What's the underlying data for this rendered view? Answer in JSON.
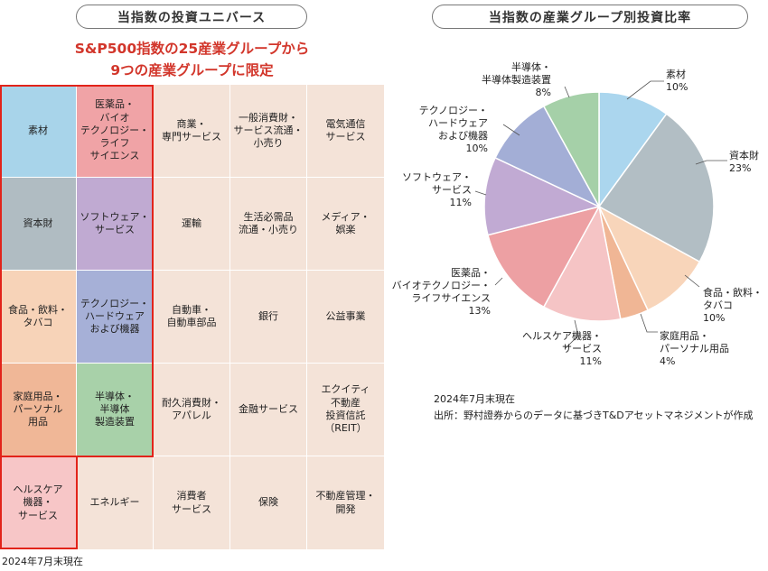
{
  "left": {
    "heading": "当指数の投資ユニバース",
    "subtitle_line1": "S&P500指数の25産業グループから",
    "subtitle_line2": "9つの産業グループに限定",
    "rows": [
      [
        "素材",
        "医薬品・\nバイオ\nテクノロジー・\nライフ\nサイエンス",
        "商業・\n専門サービス",
        "一般消費財・\nサービス流通・\n小売り",
        "電気通信\nサービス"
      ],
      [
        "資本財",
        "ソフトウェア・\nサービス",
        "運輸",
        "生活必需品\n流通・小売り",
        "メディア・\n娯楽"
      ],
      [
        "食品・飲料・\nタバコ",
        "テクノロジー・\nハードウェア\nおよび機器",
        "自動車・\n自動車部品",
        "銀行",
        "公益事業"
      ],
      [
        "家庭用品・\nパーソナル\n用品",
        "半導体・\n半導体\n製造装置",
        "耐久消費財・\nアパレル",
        "金融サービス",
        "エクイティ\n不動産\n投資信託\n（REIT）"
      ],
      [
        "ヘルスケア\n機器・\nサービス",
        "エネルギー",
        "消費者\nサービス",
        "保険",
        "不動産管理・\n開発"
      ]
    ],
    "cell_colors": [
      [
        "#a8d4ea",
        "#f0a3a6",
        null,
        null,
        null
      ],
      [
        "#b0bcc2",
        "#c0aad2",
        null,
        null,
        null
      ],
      [
        "#f7d3b8",
        "#a6b0d7",
        null,
        null,
        null
      ],
      [
        "#f0b797",
        "#a8d1a9",
        null,
        null,
        null
      ],
      [
        "#f7c6c7",
        null,
        null,
        null,
        null
      ]
    ],
    "footnote": "2024年7月末現在"
  },
  "right": {
    "heading": "当指数の産業グループ別投資比率",
    "footnote_line1": "2024年7月末現在",
    "footnote_line2": "出所：野村證券からのデータに基づきT&Dアセットマネジメントが作成"
  },
  "chart_data": {
    "type": "pie",
    "title": "当指数の産業グループ別投資比率",
    "slices": [
      {
        "label": "素材",
        "value": 10,
        "pct_text": "10%",
        "color": "#abd6ee"
      },
      {
        "label": "資本財",
        "value": 23,
        "pct_text": "23%",
        "color": "#b2bec4"
      },
      {
        "label": "食品・飲料・タバコ",
        "value": 10,
        "pct_text": "10%",
        "color": "#f8d5ba"
      },
      {
        "label": "家庭用品・パーソナル用品",
        "value": 4,
        "pct_text": "4%",
        "color": "#f0b695"
      },
      {
        "label": "ヘルスケア機器・サービス",
        "value": 11,
        "pct_text": "11%",
        "color": "#f5c4c5"
      },
      {
        "label": "医薬品・バイオテクノロジー・ライフサイエンス",
        "value": 13,
        "pct_text": "13%",
        "color": "#eda0a3"
      },
      {
        "label": "ソフトウェア・サービス",
        "value": 11,
        "pct_text": "11%",
        "color": "#c1aad3"
      },
      {
        "label": "テクノロジー・ハードウェアおよび機器",
        "value": 10,
        "pct_text": "10%",
        "color": "#a3aed6"
      },
      {
        "label": "半導体・半導体製造装置",
        "value": 8,
        "pct_text": "8%",
        "color": "#a5d0a8"
      }
    ],
    "label_lines": [
      [
        "素材"
      ],
      [
        "資本財"
      ],
      [
        "食品・飲料・",
        "タバコ"
      ],
      [
        "家庭用品・",
        "パーソナル用品"
      ],
      [
        "ヘルスケア機器・",
        "サービス"
      ],
      [
        "医薬品・",
        "バイオテクノロジー・",
        "ライフサイエンス"
      ],
      [
        "ソフトウェア・",
        "サービス"
      ],
      [
        "テクノロジー・",
        "ハードウェア",
        "および機器"
      ],
      [
        "半導体・",
        "半導体製造装置"
      ]
    ]
  }
}
